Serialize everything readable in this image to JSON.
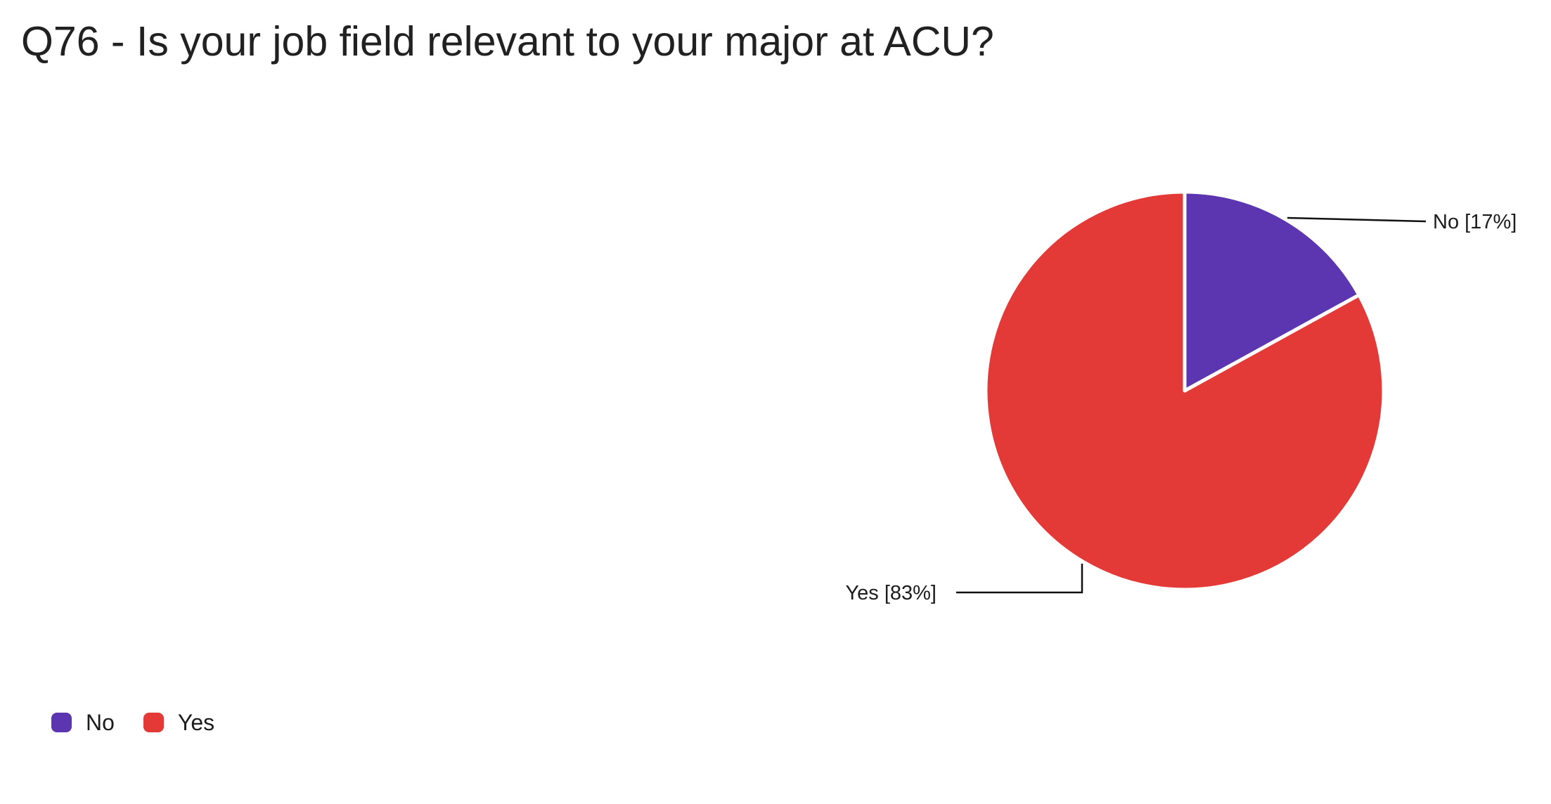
{
  "chart_data": {
    "type": "pie",
    "title": "Q76 - Is your job field relevant to your major at ACU?",
    "unit": "percent",
    "direction": "clockwise",
    "start_angle": "12-o-clock",
    "legend_position": "bottom-left",
    "slices": [
      {
        "label": "No",
        "value": 17,
        "callout": "No [17%]",
        "color": "#5C36B0"
      },
      {
        "label": "Yes",
        "value": 83,
        "callout": "Yes [83%]",
        "color": "#E33937"
      }
    ]
  },
  "colors": {
    "background": "#ffffff",
    "slice_border": "#ffffff",
    "connector": "#111111",
    "title_text": "#212121",
    "label_text": "#1c1c1c"
  }
}
